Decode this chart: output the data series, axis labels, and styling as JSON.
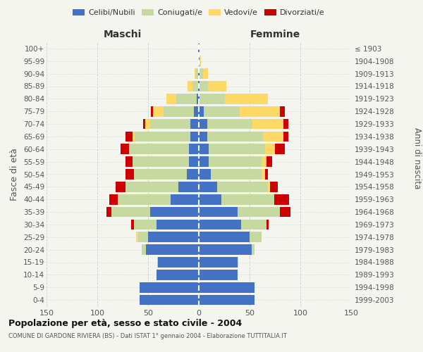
{
  "age_groups": [
    "0-4",
    "5-9",
    "10-14",
    "15-19",
    "20-24",
    "25-29",
    "30-34",
    "35-39",
    "40-44",
    "45-49",
    "50-54",
    "55-59",
    "60-64",
    "65-69",
    "70-74",
    "75-79",
    "80-84",
    "85-89",
    "90-94",
    "95-99",
    "100+"
  ],
  "birth_years": [
    "1999-2003",
    "1994-1998",
    "1989-1993",
    "1984-1988",
    "1979-1983",
    "1974-1978",
    "1969-1973",
    "1964-1968",
    "1959-1963",
    "1954-1958",
    "1949-1953",
    "1944-1948",
    "1939-1943",
    "1934-1938",
    "1929-1933",
    "1924-1928",
    "1919-1923",
    "1914-1918",
    "1909-1913",
    "1904-1908",
    "≤ 1903"
  ],
  "male": {
    "celibi": [
      58,
      58,
      42,
      40,
      52,
      50,
      42,
      48,
      28,
      20,
      12,
      10,
      10,
      8,
      8,
      5,
      2,
      1,
      1,
      0,
      1
    ],
    "coniugati": [
      0,
      0,
      0,
      1,
      4,
      10,
      22,
      38,
      52,
      52,
      52,
      55,
      58,
      55,
      40,
      30,
      20,
      5,
      2,
      0,
      0
    ],
    "vedovi": [
      0,
      0,
      0,
      0,
      0,
      2,
      0,
      0,
      0,
      0,
      0,
      0,
      1,
      2,
      5,
      10,
      10,
      5,
      1,
      0,
      0
    ],
    "divorziati": [
      0,
      0,
      0,
      0,
      0,
      0,
      3,
      5,
      8,
      10,
      8,
      7,
      8,
      7,
      2,
      2,
      0,
      0,
      0,
      0,
      0
    ]
  },
  "female": {
    "nubili": [
      55,
      55,
      38,
      38,
      52,
      50,
      42,
      38,
      22,
      18,
      12,
      10,
      10,
      8,
      8,
      5,
      1,
      1,
      1,
      1,
      1
    ],
    "coniugate": [
      0,
      0,
      0,
      1,
      3,
      12,
      25,
      42,
      52,
      50,
      50,
      52,
      55,
      55,
      45,
      35,
      25,
      8,
      3,
      0,
      0
    ],
    "vedove": [
      0,
      0,
      0,
      0,
      0,
      0,
      0,
      0,
      0,
      2,
      3,
      5,
      10,
      20,
      30,
      40,
      42,
      18,
      5,
      1,
      0
    ],
    "divorziate": [
      0,
      0,
      0,
      0,
      0,
      0,
      2,
      10,
      15,
      8,
      3,
      5,
      10,
      5,
      5,
      5,
      0,
      0,
      0,
      0,
      0
    ]
  },
  "colors": {
    "celibi": "#4472c4",
    "coniugati": "#c5d9a0",
    "vedovi": "#ffd966",
    "divorziati": "#cc0000"
  },
  "xlim": 150,
  "title": "Popolazione per età, sesso e stato civile - 2004",
  "subtitle": "COMUNE DI GARDONE RIVIERA (BS) - Dati ISTAT 1° gennaio 2004 - Elaborazione TUTTITALIA.IT",
  "ylabel": "Fasce di età",
  "ylabel_right": "Anni di nascita",
  "xlabel_left": "Maschi",
  "xlabel_right": "Femmine",
  "legend_labels": [
    "Celibi/Nubili",
    "Coniugati/e",
    "Vedovi/e",
    "Divorziati/e"
  ],
  "background_color": "#f5f5f0",
  "grid_color": "#bbbbbb"
}
